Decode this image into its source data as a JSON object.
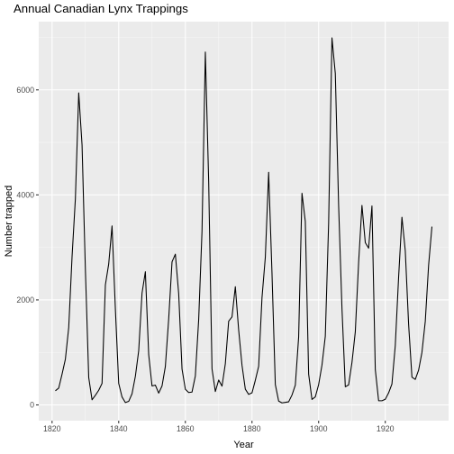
{
  "chart_data": {
    "type": "line",
    "title": "Annual Canadian Lynx Trappings",
    "xlabel": "Year",
    "ylabel": "Number trapped",
    "xlim": [
      1816,
      1939
    ],
    "ylim": [
      -300,
      7300
    ],
    "x_ticks": [
      1820,
      1840,
      1860,
      1880,
      1900,
      1920
    ],
    "y_ticks": [
      0,
      2000,
      4000,
      6000
    ],
    "x_tick_labels": [
      "1820",
      "1840",
      "1860",
      "1880",
      "1900",
      "1920"
    ],
    "y_tick_labels": [
      "0",
      "2000",
      "4000",
      "6000"
    ],
    "grid": true,
    "series": [
      {
        "color": "#000000",
        "x": [
          1821,
          1822,
          1823,
          1824,
          1825,
          1826,
          1827,
          1828,
          1829,
          1830,
          1831,
          1832,
          1833,
          1834,
          1835,
          1836,
          1837,
          1838,
          1839,
          1840,
          1841,
          1842,
          1843,
          1844,
          1845,
          1846,
          1847,
          1848,
          1849,
          1850,
          1851,
          1852,
          1853,
          1854,
          1855,
          1856,
          1857,
          1858,
          1859,
          1860,
          1861,
          1862,
          1863,
          1864,
          1865,
          1866,
          1867,
          1868,
          1869,
          1870,
          1871,
          1872,
          1873,
          1874,
          1875,
          1876,
          1877,
          1878,
          1879,
          1880,
          1881,
          1882,
          1883,
          1884,
          1885,
          1886,
          1887,
          1888,
          1889,
          1890,
          1891,
          1892,
          1893,
          1894,
          1895,
          1896,
          1897,
          1898,
          1899,
          1900,
          1901,
          1902,
          1903,
          1904,
          1905,
          1906,
          1907,
          1908,
          1909,
          1910,
          1911,
          1912,
          1913,
          1914,
          1915,
          1916,
          1917,
          1918,
          1919,
          1920,
          1921,
          1922,
          1923,
          1924,
          1925,
          1926,
          1927,
          1928,
          1929,
          1930,
          1931,
          1932,
          1933,
          1934
        ],
        "y": [
          269,
          321,
          585,
          871,
          1475,
          2821,
          3928,
          5943,
          4950,
          2577,
          523,
          98,
          184,
          279,
          409,
          2285,
          2685,
          3409,
          1824,
          409,
          151,
          45,
          68,
          213,
          546,
          1033,
          2129,
          2536,
          957,
          361,
          377,
          225,
          360,
          731,
          1638,
          2725,
          2871,
          2119,
          684,
          299,
          236,
          245,
          552,
          1623,
          3311,
          6721,
          4254,
          687,
          255,
          473,
          358,
          784,
          1594,
          1676,
          2251,
          1426,
          756,
          299,
          201,
          229,
          469,
          736,
          2042,
          2811,
          4431,
          2511,
          389,
          73,
          39,
          49,
          59,
          188,
          377,
          1292,
          4031,
          3495,
          587,
          105,
          153,
          387,
          758,
          1307,
          3465,
          6991,
          6313,
          3794,
          1836,
          345,
          382,
          808,
          1388,
          2713,
          3800,
          3091,
          2985,
          3790,
          674,
          81,
          80,
          108,
          229,
          399,
          1132,
          2432,
          3574,
          2935,
          1537,
          529,
          485,
          662,
          1000,
          1590,
          2657,
          3396
        ]
      }
    ]
  }
}
